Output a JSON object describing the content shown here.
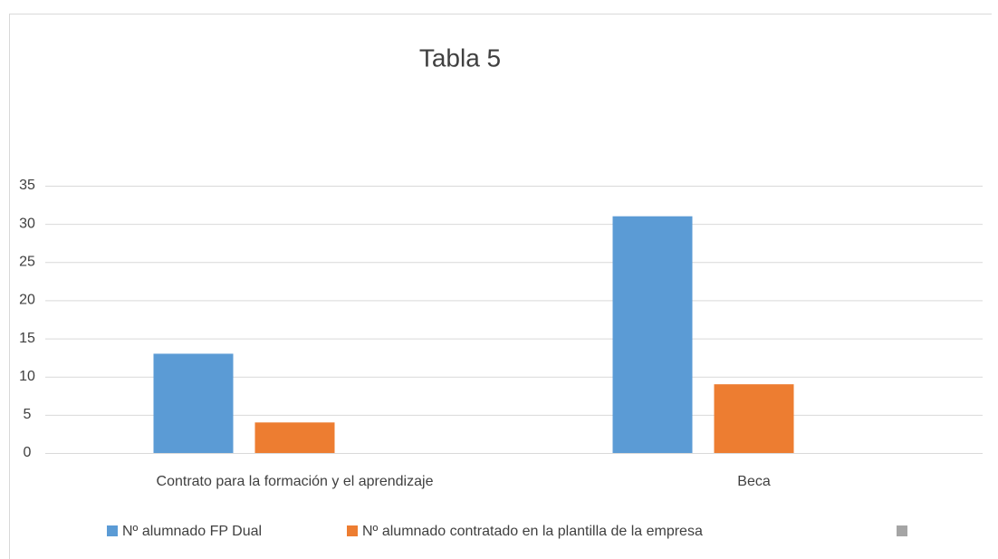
{
  "chart_data": {
    "type": "bar",
    "title": "Tabla 5",
    "categories": [
      "Contrato para la formación y el aprendizaje",
      "Beca"
    ],
    "series": [
      {
        "name": "Nº alumnado FP Dual",
        "color": "#5b9bd5",
        "values": [
          13,
          31
        ]
      },
      {
        "name": "Nº alumnado contratado en la plantilla de la empresa",
        "color": "#ed7d31",
        "values": [
          4,
          9
        ]
      },
      {
        "name": null,
        "color": "#a5a5a5",
        "values": [
          null,
          null
        ]
      }
    ],
    "ylim": [
      0,
      35
    ],
    "yticks": [
      0,
      5,
      10,
      15,
      20,
      25,
      30,
      35
    ],
    "grid": true,
    "legend": "bottom"
  }
}
